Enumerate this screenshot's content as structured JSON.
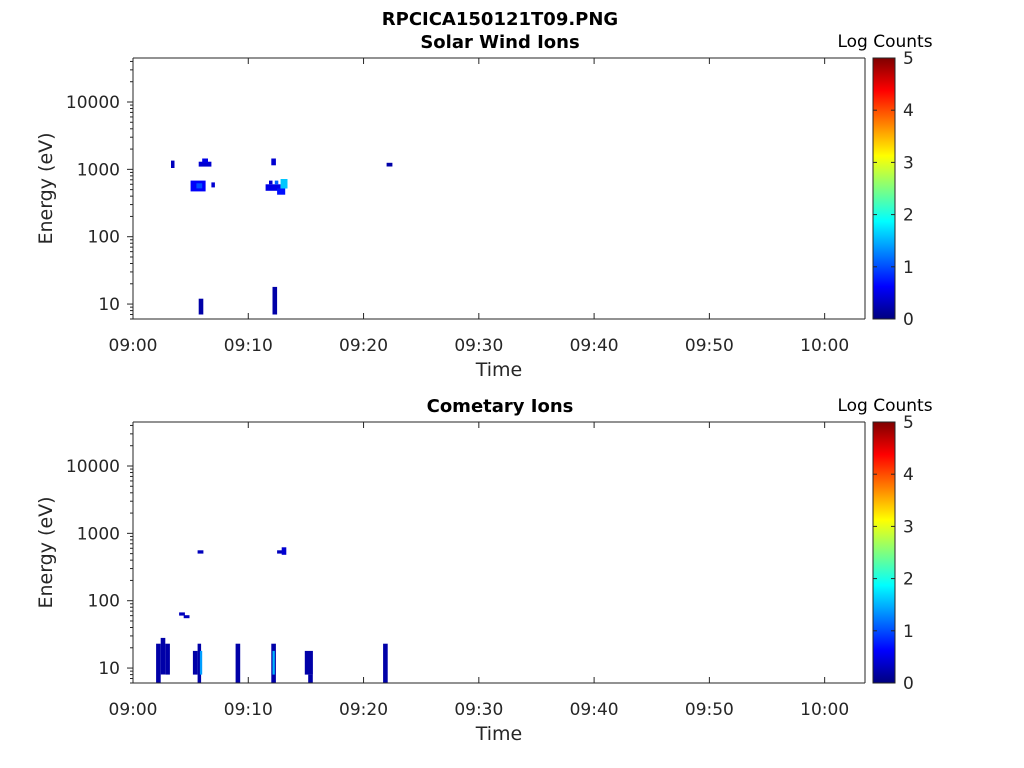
{
  "figure_title": "RPCICA150121T09.PNG",
  "chart_data": [
    {
      "type": "heatmap",
      "title": "Solar Wind Ions",
      "xlabel": "Time",
      "ylabel": "Energy (eV)",
      "x_tick_labels": [
        "09:00",
        "09:10",
        "09:20",
        "09:30",
        "09:40",
        "09:50",
        "10:00"
      ],
      "x_range_minutes": [
        0,
        63.5
      ],
      "y_scale": "log",
      "y_tick_values": [
        10,
        100,
        1000,
        10000
      ],
      "y_tick_labels": [
        "10",
        "100",
        "1000",
        "10000"
      ],
      "y_range": [
        6,
        45000
      ],
      "colorbar": {
        "label": "Log Counts",
        "range": [
          0,
          5
        ],
        "tick_labels": [
          "0",
          "1",
          "2",
          "3",
          "4",
          "5"
        ],
        "colormap": "jet"
      },
      "cells": [
        {
          "t0": 3.3,
          "t1": 3.6,
          "e0": 1050,
          "e1": 1350,
          "v": 0.3
        },
        {
          "t0": 5.7,
          "t1": 6.8,
          "e0": 1100,
          "e1": 1300,
          "v": 0.4
        },
        {
          "t0": 6.0,
          "t1": 6.5,
          "e0": 1250,
          "e1": 1450,
          "v": 0.5
        },
        {
          "t0": 5.0,
          "t1": 6.3,
          "e0": 470,
          "e1": 680,
          "v": 0.6
        },
        {
          "t0": 5.5,
          "t1": 6.0,
          "e0": 520,
          "e1": 620,
          "v": 1.0
        },
        {
          "t0": 6.8,
          "t1": 7.1,
          "e0": 540,
          "e1": 640,
          "v": 0.4
        },
        {
          "t0": 12.0,
          "t1": 12.4,
          "e0": 1150,
          "e1": 1450,
          "v": 0.4
        },
        {
          "t0": 11.5,
          "t1": 12.8,
          "e0": 480,
          "e1": 600,
          "v": 0.5
        },
        {
          "t0": 11.8,
          "t1": 12.1,
          "e0": 600,
          "e1": 680,
          "v": 0.4
        },
        {
          "t0": 12.5,
          "t1": 13.2,
          "e0": 420,
          "e1": 520,
          "v": 0.7
        },
        {
          "t0": 12.8,
          "t1": 13.4,
          "e0": 520,
          "e1": 720,
          "v": 1.6
        },
        {
          "t0": 12.3,
          "t1": 12.6,
          "e0": 600,
          "e1": 680,
          "v": 1.1
        },
        {
          "t0": 22.0,
          "t1": 22.5,
          "e0": 1100,
          "e1": 1250,
          "v": 0.2
        },
        {
          "t0": 5.7,
          "t1": 6.1,
          "e0": 7,
          "e1": 12,
          "v": 0.2
        },
        {
          "t0": 12.1,
          "t1": 12.5,
          "e0": 7,
          "e1": 18,
          "v": 0.2
        }
      ]
    },
    {
      "type": "heatmap",
      "title": "Cometary Ions",
      "xlabel": "Time",
      "ylabel": "Energy (eV)",
      "x_tick_labels": [
        "09:00",
        "09:10",
        "09:20",
        "09:30",
        "09:40",
        "09:50",
        "10:00"
      ],
      "x_range_minutes": [
        0,
        63.5
      ],
      "y_scale": "log",
      "y_tick_values": [
        10,
        100,
        1000,
        10000
      ],
      "y_tick_labels": [
        "10",
        "100",
        "1000",
        "10000"
      ],
      "y_range": [
        6,
        45000
      ],
      "colorbar": {
        "label": "Log Counts",
        "range": [
          0,
          5
        ],
        "tick_labels": [
          "0",
          "1",
          "2",
          "3",
          "4",
          "5"
        ],
        "colormap": "jet"
      },
      "cells": [
        {
          "t0": 5.6,
          "t1": 6.1,
          "e0": 500,
          "e1": 560,
          "v": 0.3
        },
        {
          "t0": 12.5,
          "t1": 13.0,
          "e0": 500,
          "e1": 560,
          "v": 0.3
        },
        {
          "t0": 12.9,
          "t1": 13.3,
          "e0": 480,
          "e1": 620,
          "v": 0.4
        },
        {
          "t0": 4.0,
          "t1": 4.5,
          "e0": 60,
          "e1": 67,
          "v": 0.3
        },
        {
          "t0": 4.4,
          "t1": 4.9,
          "e0": 55,
          "e1": 61,
          "v": 0.3
        },
        {
          "t0": 2.0,
          "t1": 2.4,
          "e0": 6,
          "e1": 23,
          "v": 0.2
        },
        {
          "t0": 2.4,
          "t1": 2.8,
          "e0": 8,
          "e1": 28,
          "v": 0.2
        },
        {
          "t0": 2.8,
          "t1": 3.2,
          "e0": 8,
          "e1": 23,
          "v": 0.2
        },
        {
          "t0": 5.2,
          "t1": 5.6,
          "e0": 8,
          "e1": 18,
          "v": 0.2
        },
        {
          "t0": 5.6,
          "t1": 5.9,
          "e0": 6,
          "e1": 23,
          "v": 0.2
        },
        {
          "t0": 5.8,
          "t1": 6.0,
          "e0": 8,
          "e1": 18,
          "v": 1.4
        },
        {
          "t0": 8.9,
          "t1": 9.3,
          "e0": 6,
          "e1": 23,
          "v": 0.2
        },
        {
          "t0": 12.0,
          "t1": 12.4,
          "e0": 6,
          "e1": 23,
          "v": 0.2
        },
        {
          "t0": 12.1,
          "t1": 12.3,
          "e0": 8,
          "e1": 18,
          "v": 1.5
        },
        {
          "t0": 14.9,
          "t1": 15.6,
          "e0": 8,
          "e1": 18,
          "v": 0.2
        },
        {
          "t0": 15.2,
          "t1": 15.6,
          "e0": 6,
          "e1": 8,
          "v": 0.2
        },
        {
          "t0": 21.7,
          "t1": 22.1,
          "e0": 6,
          "e1": 23,
          "v": 0.2
        }
      ]
    }
  ]
}
